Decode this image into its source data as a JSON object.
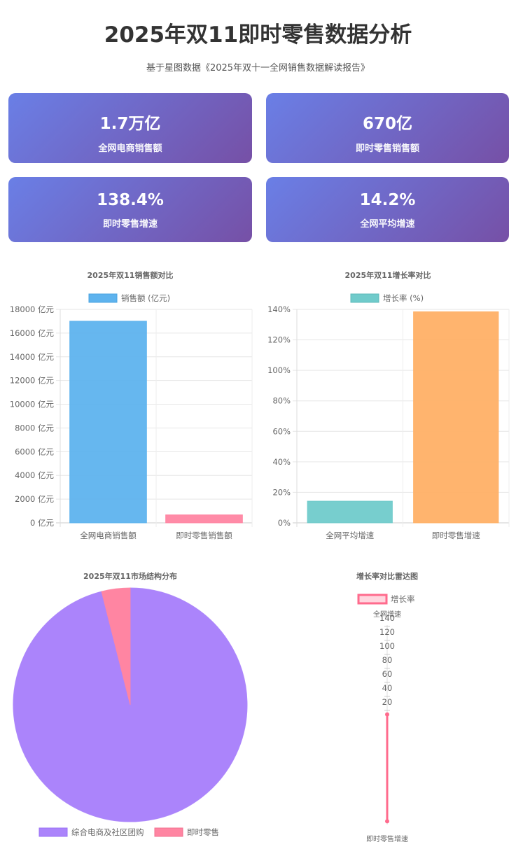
{
  "header": {
    "title": "2025年双11即时零售数据分析",
    "subtitle": "基于星图数据《2025年双十一全网销售数据解读报告》"
  },
  "cards": [
    {
      "value": "1.7万亿",
      "label": "全网电商销售额"
    },
    {
      "value": "670亿",
      "label": "即时零售销售额"
    },
    {
      "value": "138.4%",
      "label": "即时零售增速"
    },
    {
      "value": "14.2%",
      "label": "全网平均增速"
    }
  ],
  "colors": {
    "card_gradient_start": "#6a7fe6",
    "card_gradient_end": "#7650a6",
    "blue": "#5eb3ee",
    "pink": "#ff85a2",
    "teal": "#70cbcb",
    "orange": "#ffb066",
    "purple": "#ab84fb",
    "radar_line": "#ff6b8d"
  },
  "chart_data": [
    {
      "type": "bar",
      "title": "2025年双11销售额对比",
      "legend": [
        "销售额 (亿元)"
      ],
      "categories": [
        "全网电商销售额",
        "即时零售销售额"
      ],
      "series": [
        {
          "name": "销售额 (亿元)",
          "values": [
            17000,
            670
          ]
        }
      ],
      "ylim": [
        0,
        18000
      ],
      "yticks": [
        0,
        2000,
        4000,
        6000,
        8000,
        10000,
        12000,
        14000,
        16000,
        18000
      ],
      "y_tick_suffix": " 亿元",
      "bar_colors": [
        "#5eb3ee",
        "#ff85a2"
      ],
      "grid": true,
      "legend_position": "top"
    },
    {
      "type": "bar",
      "title": "2025年双11增长率对比",
      "legend": [
        "增长率 (%)"
      ],
      "categories": [
        "全网平均增速",
        "即时零售增速"
      ],
      "series": [
        {
          "name": "增长率 (%)",
          "values": [
            14.2,
            138.4
          ]
        }
      ],
      "ylim": [
        0,
        140
      ],
      "yticks": [
        0,
        20,
        40,
        60,
        80,
        100,
        120,
        140
      ],
      "y_tick_suffix": "%",
      "bar_colors": [
        "#70cbcb",
        "#ffb066"
      ],
      "grid": true,
      "legend_position": "top"
    },
    {
      "type": "pie",
      "title": "2025年双11市场结构分布",
      "categories": [
        "综合电商及社区团购",
        "即时零售"
      ],
      "values": [
        16330,
        670
      ],
      "colors": [
        "#ab84fb",
        "#ff85a2"
      ],
      "legend_position": "bottom"
    },
    {
      "type": "radar",
      "title": "增长率对比雷达图",
      "legend": [
        "增长率"
      ],
      "axes": [
        "全网增速",
        "即时零售增速"
      ],
      "series": [
        {
          "name": "增长率",
          "values": [
            14.2,
            138.4
          ]
        }
      ],
      "ticks": [
        20,
        40,
        60,
        80,
        100,
        120,
        140
      ],
      "rmax": 140,
      "legend_position": "top"
    }
  ]
}
